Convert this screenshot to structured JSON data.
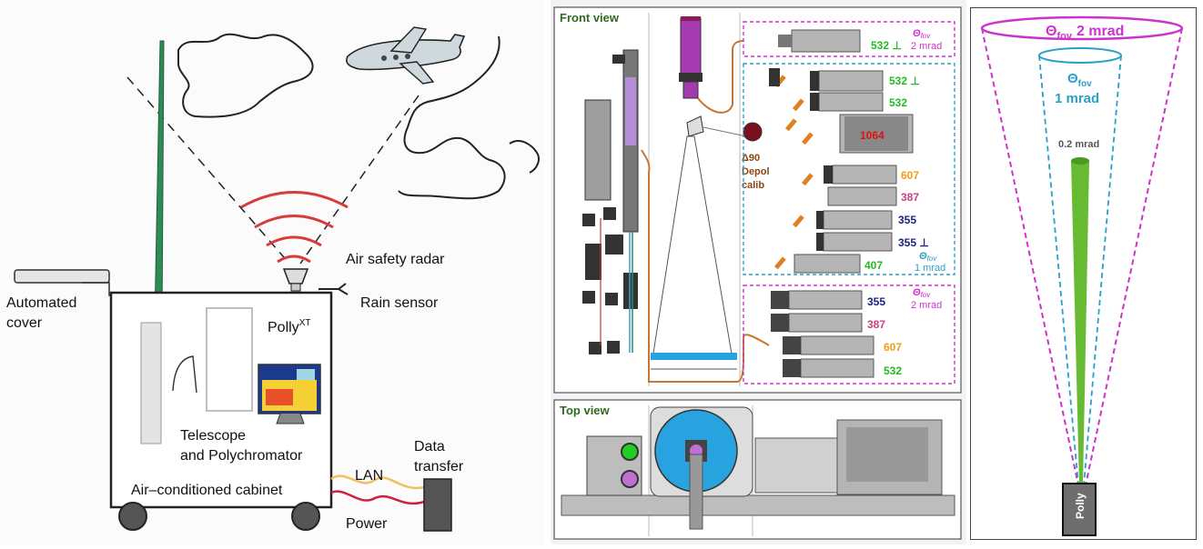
{
  "left_sketch": {
    "air_safety_radar": "Air safety radar",
    "rain_sensor": "Rain sensor",
    "automated_cover_line1": "Automated",
    "automated_cover_line2": "cover",
    "polly_name": "Polly",
    "polly_sup": "XT",
    "telescope_line1": "Telescope",
    "telescope_line2": "and Polychromator",
    "cabinet": "Air–conditioned cabinet",
    "lan": "LAN",
    "power": "Power",
    "data_transfer_line1": "Data",
    "data_transfer_line2": "transfer"
  },
  "front_view": {
    "title": "Front view",
    "depol_line1": "Δ90",
    "depol_line2": "Depol",
    "depol_line3": "calib",
    "top_box": {
      "channels": [
        {
          "label": "532 ⊥",
          "color": "#22bb22"
        }
      ],
      "fov_symbol": "Θ",
      "fov_sub": "fov",
      "fov_value": "2 mrad"
    },
    "mid_box": {
      "channels": [
        {
          "label": "532 ⊥",
          "color": "#22bb22"
        },
        {
          "label": "532",
          "color": "#22bb22"
        },
        {
          "label": "1064",
          "color": "#e01010"
        },
        {
          "label": "607",
          "color": "#f39c12"
        },
        {
          "label": "387",
          "color": "#d04080"
        },
        {
          "label": "355",
          "color": "#1a237e"
        },
        {
          "label": "355 ⊥",
          "color": "#1a237e"
        },
        {
          "label": "407",
          "color": "#22bb22"
        }
      ],
      "fov_symbol": "Θ",
      "fov_sub": "fov",
      "fov_value": "1 mrad"
    },
    "bottom_box": {
      "channels": [
        {
          "label": "355",
          "color": "#1a237e"
        },
        {
          "label": "387",
          "color": "#d04080"
        },
        {
          "label": "607",
          "color": "#f39c12"
        },
        {
          "label": "532",
          "color": "#22bb22"
        }
      ],
      "fov_symbol": "Θ",
      "fov_sub": "fov",
      "fov_value": "2 mrad"
    }
  },
  "top_view": {
    "title": "Top view"
  },
  "fov_diagram": {
    "outer": {
      "symbol": "Θ",
      "sub": "fov",
      "value": "2 mrad",
      "color": "#cc33cc"
    },
    "inner": {
      "symbol": "Θ",
      "sub": "fov",
      "value": "1 mrad",
      "color": "#2aa0c8"
    },
    "beam": {
      "value": "0.2 mrad",
      "color": "#66bb33"
    },
    "instrument": "Polly"
  },
  "colors": {
    "title_green": "#2e6b1f",
    "magenta": "#cc33cc",
    "cyan": "#2aa0c8",
    "orange_fiber": "#c87533",
    "mirror_blue": "#29a3e0",
    "instrument_gray": "#9a9a9a"
  }
}
